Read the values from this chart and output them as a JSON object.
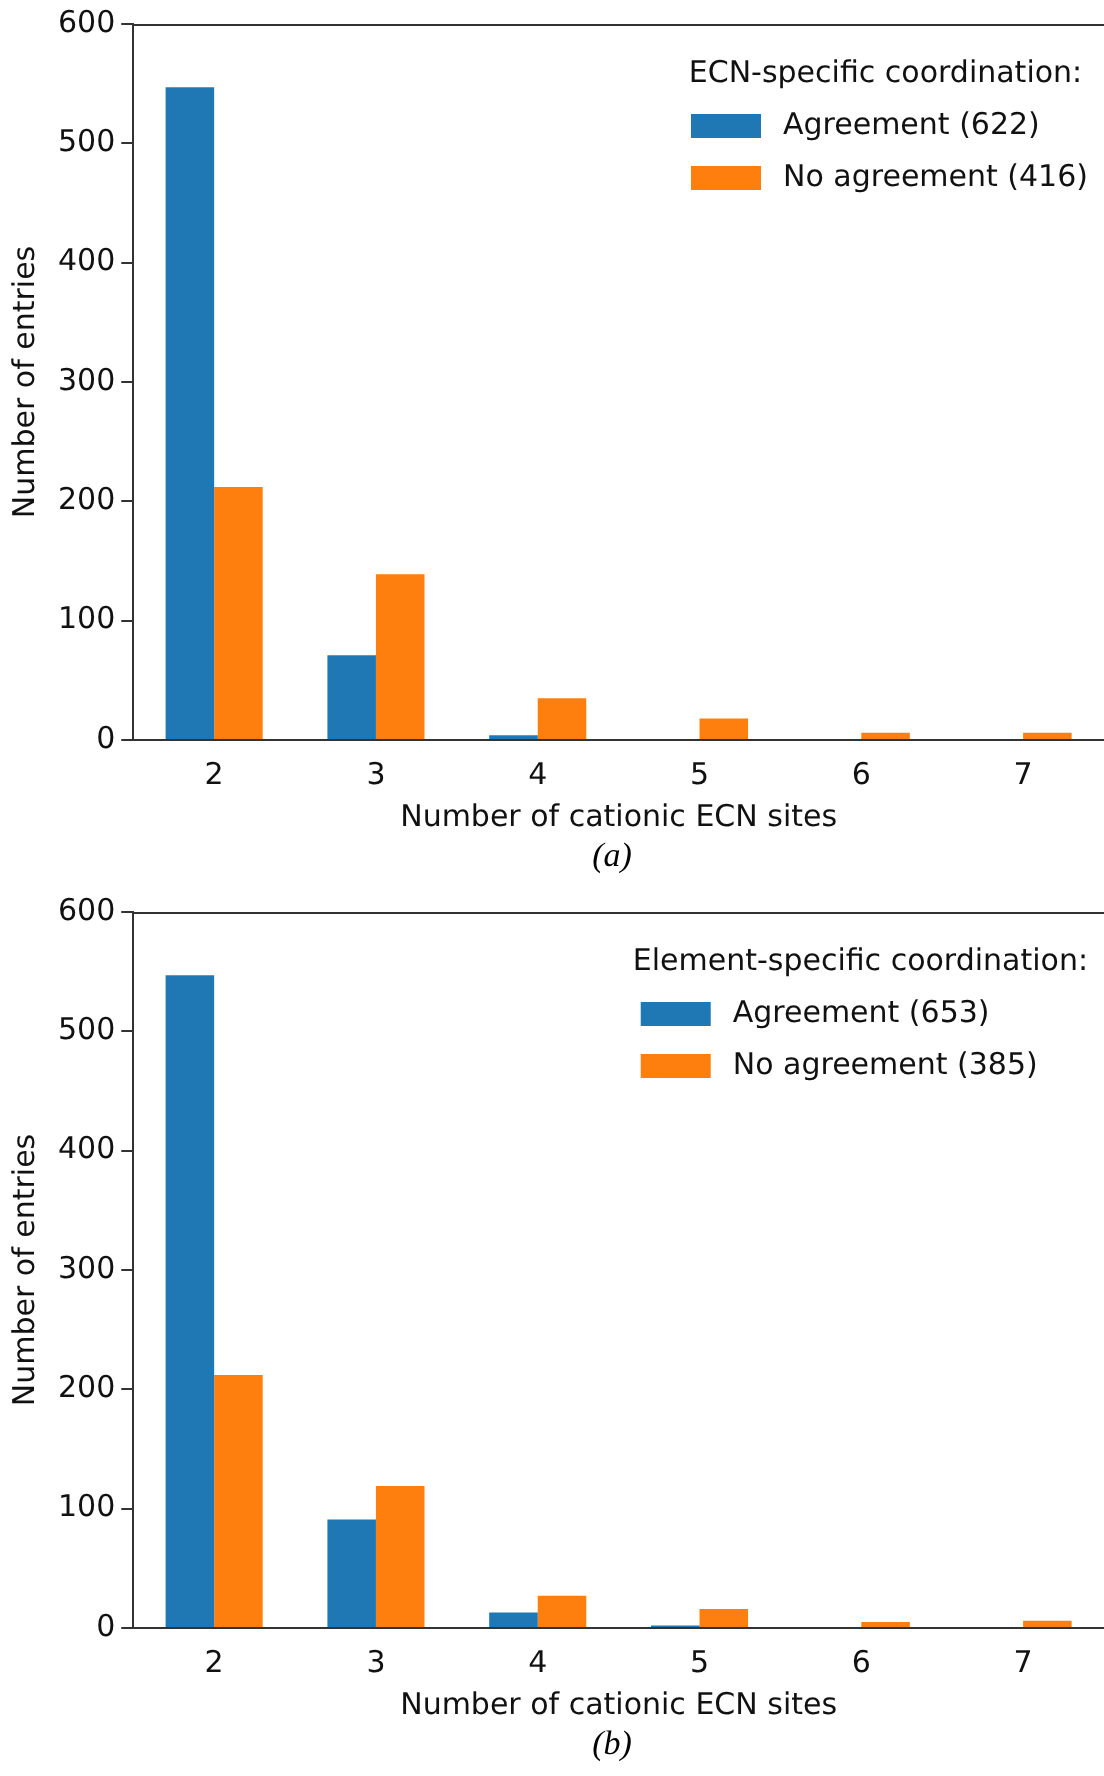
{
  "chart_data": [
    {
      "type": "bar",
      "xlabel": "Number of cationic ECN sites",
      "ylabel": "Number of entries",
      "legend_title": "ECN-specific coordination:",
      "annotations": [
        "(a)"
      ],
      "categories": [
        "2",
        "3",
        "4",
        "5",
        "6",
        "7"
      ],
      "ylim": [
        0,
        600
      ],
      "yticks": [
        0,
        100,
        200,
        300,
        400,
        500,
        600
      ],
      "grid": false,
      "legend": "top right",
      "series": [
        {
          "name": "Agreement (622)",
          "color": "#1f77b4",
          "values": [
            547,
            71,
            4,
            0,
            0,
            0
          ]
        },
        {
          "name": "No agreement (416)",
          "color": "#ff7f0e",
          "values": [
            212,
            139,
            35,
            18,
            6,
            6
          ]
        }
      ]
    },
    {
      "type": "bar",
      "xlabel": "Number of cationic ECN sites",
      "ylabel": "Number of entries",
      "legend_title": "Element-specific coordination:",
      "annotations": [
        "(b)"
      ],
      "categories": [
        "2",
        "3",
        "4",
        "5",
        "6",
        "7"
      ],
      "ylim": [
        0,
        600
      ],
      "yticks": [
        0,
        100,
        200,
        300,
        400,
        500,
        600
      ],
      "grid": false,
      "legend": "top right",
      "series": [
        {
          "name": "Agreement (653)",
          "color": "#1f77b4",
          "values": [
            547,
            91,
            13,
            2,
            0,
            0
          ]
        },
        {
          "name": "No agreement (385)",
          "color": "#ff7f0e",
          "values": [
            212,
            119,
            27,
            16,
            5,
            6
          ]
        }
      ]
    }
  ]
}
